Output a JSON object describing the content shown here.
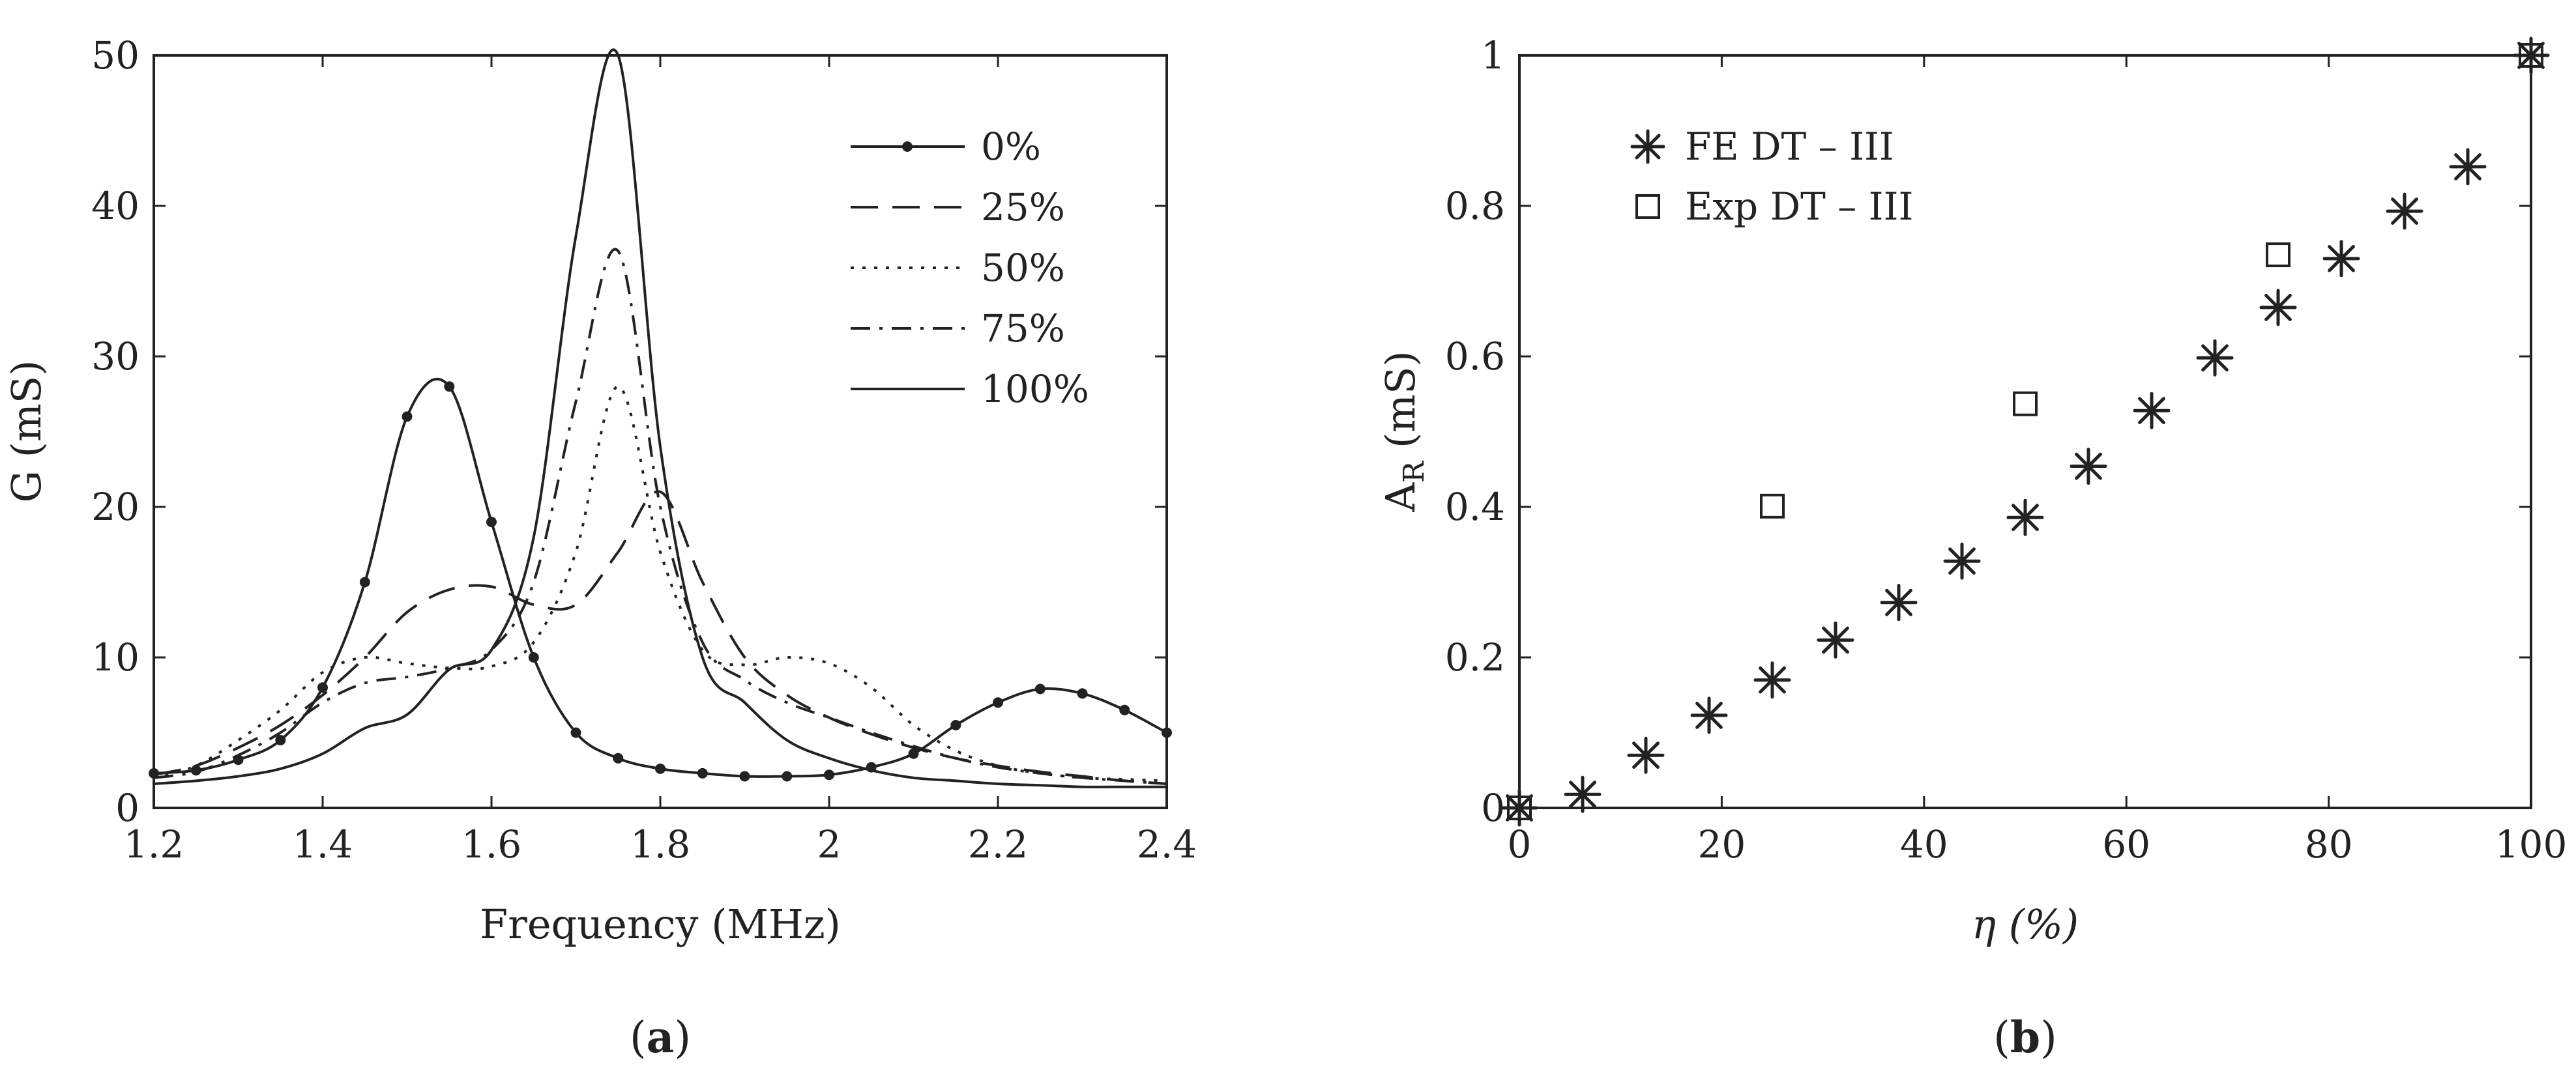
{
  "chart_data": [
    {
      "type": "line",
      "panel_label": "a",
      "xlabel": "Frequency (MHz)",
      "ylabel": "G (mS)",
      "xlim": [
        1.2,
        2.4
      ],
      "ylim": [
        0,
        50
      ],
      "xticks": [
        "1.2",
        "1.4",
        "1.6",
        "1.8",
        "2",
        "2.2",
        "2.4"
      ],
      "yticks": [
        "0",
        "10",
        "20",
        "30",
        "40",
        "50"
      ],
      "legend_position": "top-right",
      "x": [
        1.2,
        1.25,
        1.3,
        1.35,
        1.4,
        1.45,
        1.5,
        1.55,
        1.6,
        1.65,
        1.7,
        1.75,
        1.8,
        1.85,
        1.9,
        1.95,
        2.0,
        2.05,
        2.1,
        2.15,
        2.2,
        2.25,
        2.3,
        2.35,
        2.4
      ],
      "series": [
        {
          "name": "0%",
          "style": "solid-dots",
          "values": [
            2.3,
            2.5,
            3.2,
            4.5,
            8,
            15,
            26,
            28,
            19,
            10,
            5,
            3.3,
            2.6,
            2.3,
            2.1,
            2.1,
            2.2,
            2.7,
            3.6,
            5.5,
            7,
            7.9,
            7.6,
            6.5,
            5
          ]
        },
        {
          "name": "25%",
          "style": "dashed",
          "values": [
            2.2,
            2.8,
            4,
            5.5,
            7.5,
            10,
            13,
            14.5,
            14.7,
            13.5,
            13.5,
            17,
            21,
            15,
            10,
            7.5,
            6,
            4.9,
            4,
            3.3,
            2.8,
            2.4,
            2.1,
            1.8,
            1.6
          ]
        },
        {
          "name": "50%",
          "style": "dotted",
          "values": [
            2.0,
            2.8,
            4.5,
            6.5,
            9,
            10,
            9.6,
            9.3,
            9.4,
            11,
            17,
            28,
            17,
            10.5,
            9.5,
            10,
            9.6,
            8,
            5.5,
            3.8,
            2.8,
            2.3,
            2.0,
            1.9,
            1.8
          ]
        },
        {
          "name": "75%",
          "style": "dashdot",
          "values": [
            2.0,
            2.4,
            3.5,
            5,
            7,
            8.3,
            8.7,
            9.3,
            10.5,
            15,
            27,
            37,
            20,
            11,
            8.5,
            7,
            6,
            5,
            4.1,
            3.3,
            2.7,
            2.3,
            2.0,
            1.8,
            1.6
          ]
        },
        {
          "name": "100%",
          "style": "solid",
          "values": [
            1.6,
            1.8,
            2.1,
            2.6,
            3.6,
            5.3,
            6.2,
            9.2,
            10.5,
            18,
            38,
            50,
            24,
            10,
            7,
            4.5,
            3.3,
            2.5,
            2.0,
            1.8,
            1.6,
            1.5,
            1.4,
            1.4,
            1.4
          ]
        }
      ]
    },
    {
      "type": "scatter",
      "panel_label": "b",
      "xlabel": "η (%)",
      "ylabel_main": "A",
      "ylabel_sub": "R",
      "ylabel_unit": " (mS)",
      "xlim": [
        0,
        100
      ],
      "ylim": [
        0,
        1
      ],
      "xticks": [
        "0",
        "20",
        "40",
        "60",
        "80",
        "100"
      ],
      "yticks": [
        "0",
        "0.2",
        "0.4",
        "0.6",
        "0.8",
        "1"
      ],
      "legend_position": "top-left",
      "series": [
        {
          "name": "FE DT – III",
          "marker": "asterisk",
          "x": [
            0,
            6.25,
            12.5,
            18.75,
            25,
            31.25,
            37.5,
            43.75,
            50,
            56.25,
            62.5,
            68.75,
            75,
            81.25,
            87.5,
            93.75,
            100
          ],
          "y": [
            0,
            0.018,
            0.07,
            0.123,
            0.17,
            0.223,
            0.273,
            0.328,
            0.386,
            0.454,
            0.528,
            0.598,
            0.665,
            0.73,
            0.793,
            0.852,
            1.0
          ]
        },
        {
          "name": "Exp DT – III",
          "marker": "square",
          "x": [
            0,
            25,
            50,
            75,
            100
          ],
          "y": [
            0,
            0.401,
            0.537,
            0.735,
            1.0
          ]
        }
      ]
    }
  ]
}
